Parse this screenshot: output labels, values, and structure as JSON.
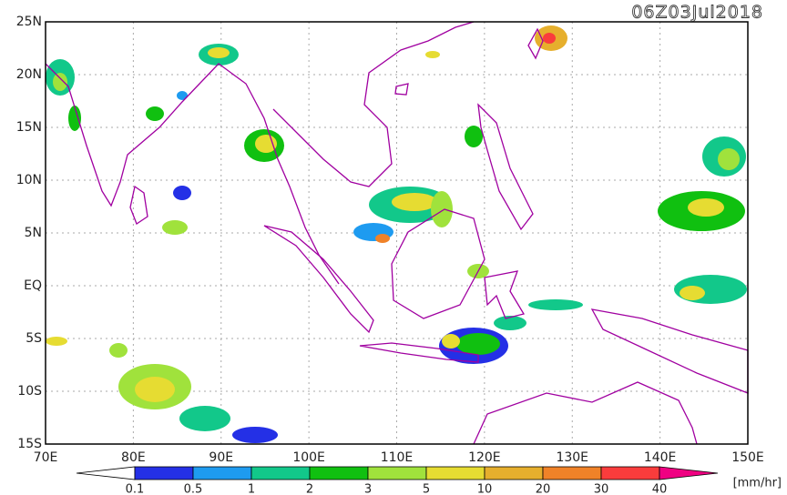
{
  "header": {
    "timestamp": "06Z03Jul2018"
  },
  "axes": {
    "lat_labels": [
      "25N",
      "20N",
      "15N",
      "10N",
      "5N",
      "EQ",
      "5S",
      "10S",
      "15S"
    ],
    "lon_labels": [
      "70E",
      "80E",
      "90E",
      "100E",
      "110E",
      "120E",
      "130E",
      "140E",
      "150E"
    ]
  },
  "colorbar": {
    "levels": [
      "0.1",
      "0.5",
      "1",
      "2",
      "3",
      "5",
      "10",
      "20",
      "30",
      "40"
    ],
    "colors": [
      "#ffffff",
      "#2430e6",
      "#1e9bf0",
      "#12c88a",
      "#10c010",
      "#a0e23c",
      "#e6dc32",
      "#e6af2d",
      "#f08228",
      "#fa3c3c",
      "#f00082"
    ],
    "unit": "[mm/hr]"
  }
}
